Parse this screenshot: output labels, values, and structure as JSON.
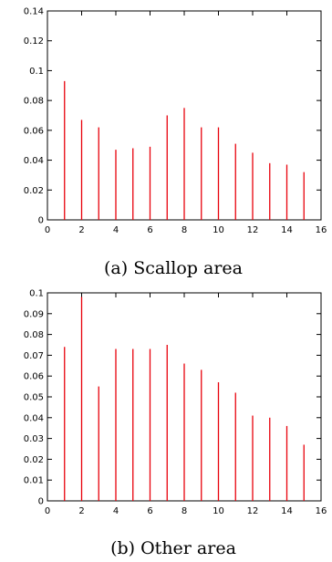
{
  "chart_data": [
    {
      "type": "bar",
      "title": "",
      "xlabel": "",
      "ylabel": "",
      "caption": "(a) Scallop area",
      "xlim": [
        0,
        16
      ],
      "ylim": [
        0,
        0.14
      ],
      "x_ticks": [
        "0",
        "2",
        "4",
        "6",
        "8",
        "10",
        "12",
        "14",
        "16"
      ],
      "y_ticks": [
        "0",
        "0.02",
        "0.04",
        "0.06",
        "0.08",
        "0.1",
        "0.12",
        "0.14"
      ],
      "bar_color": "#e8000b",
      "x": [
        1,
        2,
        3,
        4,
        5,
        6,
        7,
        8,
        9,
        10,
        11,
        12,
        13,
        14,
        15
      ],
      "values": [
        0.093,
        0.067,
        0.062,
        0.047,
        0.048,
        0.049,
        0.07,
        0.075,
        0.062,
        0.062,
        0.051,
        0.045,
        0.038,
        0.037,
        0.032
      ]
    },
    {
      "type": "bar",
      "title": "",
      "xlabel": "",
      "ylabel": "",
      "caption": "(b) Other area",
      "xlim": [
        0,
        16
      ],
      "ylim": [
        0,
        0.1
      ],
      "x_ticks": [
        "0",
        "2",
        "4",
        "6",
        "8",
        "10",
        "12",
        "14",
        "16"
      ],
      "y_ticks": [
        "0",
        "0.01",
        "0.02",
        "0.03",
        "0.04",
        "0.05",
        "0.06",
        "0.07",
        "0.08",
        "0.09",
        "0.1"
      ],
      "bar_color": "#e8000b",
      "x": [
        1,
        2,
        3,
        4,
        5,
        6,
        7,
        8,
        9,
        10,
        11,
        12,
        13,
        14,
        15
      ],
      "values": [
        0.074,
        0.098,
        0.055,
        0.073,
        0.073,
        0.073,
        0.075,
        0.066,
        0.063,
        0.057,
        0.052,
        0.041,
        0.04,
        0.036,
        0.027
      ]
    }
  ]
}
